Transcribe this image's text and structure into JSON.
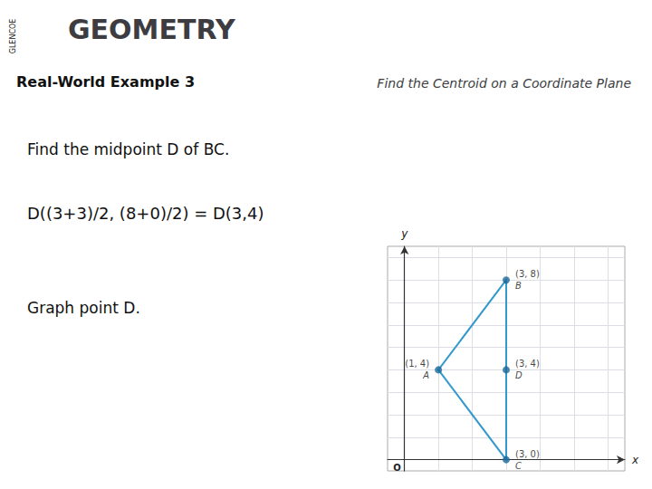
{
  "chart_data": {
    "type": "scatter",
    "title": "GEOMETRY",
    "subtitle": "Find the Centroid on a Coordinate Plane",
    "annotations": [
      "GLENCOE",
      "Real-World Example 3",
      "Find the midpoint D of BC.",
      "D((3+3)/2, (8+0)/2) = D(3,4)",
      "Graph point D.",
      "O"
    ],
    "xlabel": "x",
    "ylabel": "y",
    "xlim": [
      -0.5,
      6.5
    ],
    "ylim": [
      -0.5,
      9.5
    ],
    "xticks": [
      0,
      1,
      2,
      3,
      4,
      5,
      6
    ],
    "yticks": [
      0,
      1,
      2,
      3,
      4,
      5,
      6,
      7,
      8,
      9
    ],
    "grid": true,
    "tick_labels": false,
    "series": [
      {
        "type": "line",
        "color": "#3399cc",
        "segments": [
          [
            "B",
            "C"
          ],
          [
            "B",
            "A"
          ],
          [
            "A",
            "C"
          ]
        ]
      },
      {
        "type": "scatter",
        "color": "#1a6699",
        "points": [
          {
            "name": "B",
            "x": 3,
            "y": 8,
            "label": "(3, 8)"
          },
          {
            "name": "C",
            "x": 3,
            "y": 0,
            "label": "(3, 0)"
          },
          {
            "name": "A",
            "x": 1,
            "y": 4,
            "label": "(1, 4)"
          },
          {
            "name": "D",
            "x": 3,
            "y": 4,
            "label": "(3, 4)"
          }
        ]
      }
    ]
  }
}
